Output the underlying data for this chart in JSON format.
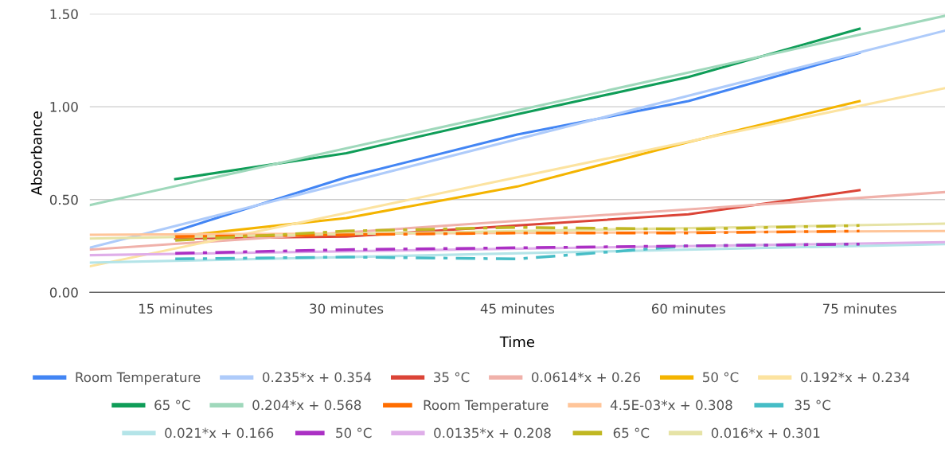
{
  "chart_data": {
    "type": "line",
    "xlabel": "Time",
    "ylabel": "Absorbance",
    "xlim": [
      7.5,
      82.5
    ],
    "xticks": [
      {
        "value": 15,
        "label": "15 minutes"
      },
      {
        "value": 30,
        "label": "30 minutes"
      },
      {
        "value": 45,
        "label": "45 minutes"
      },
      {
        "value": 60,
        "label": "60 minutes"
      },
      {
        "value": 75,
        "label": "75 minutes"
      }
    ],
    "ylim": [
      0,
      1.5
    ],
    "yticks": [
      {
        "value": 0,
        "label": "0.00"
      },
      {
        "value": 0.5,
        "label": "0.50"
      },
      {
        "value": 1,
        "label": "1.00"
      },
      {
        "value": 1.5,
        "label": "1.50"
      }
    ],
    "grid": "y",
    "legend": "bottom",
    "series": [
      {
        "name": "Room Temperature",
        "color": "#4285f4",
        "line_style": "solid",
        "x": [
          15,
          30,
          45,
          60,
          75
        ],
        "values": [
          0.33,
          0.62,
          0.85,
          1.03,
          1.29
        ]
      },
      {
        "name": "0.235*x + 0.354",
        "color": "#aecbfa",
        "line_style": "solid",
        "x": [
          7.5,
          82.5
        ],
        "values": [
          0.24,
          1.41
        ]
      },
      {
        "name": "35 °C",
        "color": "#db4437",
        "line_style": "solid",
        "x": [
          15,
          30,
          45,
          60,
          75
        ],
        "values": [
          0.29,
          0.3,
          0.36,
          0.42,
          0.55
        ]
      },
      {
        "name": "0.0614*x + 0.26",
        "color": "#f0b1aa",
        "line_style": "solid",
        "x": [
          7.5,
          82.5
        ],
        "values": [
          0.23,
          0.54
        ]
      },
      {
        "name": "50 °C",
        "color": "#f4b400",
        "line_style": "solid",
        "x": [
          15,
          30,
          45,
          60,
          75
        ],
        "values": [
          0.3,
          0.4,
          0.57,
          0.81,
          1.03
        ]
      },
      {
        "name": "0.192*x + 0.234",
        "color": "#fce3a0",
        "line_style": "solid",
        "x": [
          7.5,
          82.5
        ],
        "values": [
          0.14,
          1.1
        ]
      },
      {
        "name": "65 °C",
        "color": "#0f9d58",
        "line_style": "solid",
        "x": [
          15,
          30,
          45,
          60,
          75
        ],
        "values": [
          0.61,
          0.75,
          0.96,
          1.16,
          1.42
        ]
      },
      {
        "name": "0.204*x + 0.568",
        "color": "#9fd8bb",
        "line_style": "solid",
        "x": [
          7.5,
          82.5
        ],
        "values": [
          0.47,
          1.49
        ]
      },
      {
        "name": "Room Temperature",
        "color": "#ff6d00",
        "line_style": "dashed",
        "x": [
          15,
          30,
          45,
          60,
          75
        ],
        "values": [
          0.3,
          0.31,
          0.32,
          0.32,
          0.33
        ]
      },
      {
        "name": "4.5E-03*x + 0.308",
        "color": "#ffc599",
        "line_style": "solid",
        "x": [
          7.5,
          82.5
        ],
        "values": [
          0.31,
          0.33
        ]
      },
      {
        "name": "35 °C",
        "color": "#46bdc6",
        "line_style": "dashed",
        "x": [
          15,
          30,
          45,
          60,
          75
        ],
        "values": [
          0.18,
          0.19,
          0.18,
          0.25,
          0.26
        ]
      },
      {
        "name": "0.021*x + 0.166",
        "color": "#b4e4e8",
        "line_style": "solid",
        "x": [
          7.5,
          82.5
        ],
        "values": [
          0.16,
          0.26
        ]
      },
      {
        "name": "50 °C",
        "color": "#ab30c4",
        "line_style": "dashed",
        "x": [
          15,
          30,
          45,
          60,
          75
        ],
        "values": [
          0.21,
          0.23,
          0.24,
          0.25,
          0.26
        ]
      },
      {
        "name": "0.0135*x + 0.208",
        "color": "#dfaee9",
        "line_style": "solid",
        "x": [
          7.5,
          82.5
        ],
        "values": [
          0.2,
          0.27
        ]
      },
      {
        "name": "65 °C",
        "color": "#c0b722",
        "line_style": "dashed",
        "x": [
          15,
          30,
          45,
          60,
          75
        ],
        "values": [
          0.28,
          0.33,
          0.35,
          0.34,
          0.36
        ]
      },
      {
        "name": "0.016*x + 0.301",
        "color": "#e6e3a6",
        "line_style": "solid",
        "x": [
          7.5,
          82.5
        ],
        "values": [
          0.29,
          0.37
        ]
      }
    ]
  }
}
